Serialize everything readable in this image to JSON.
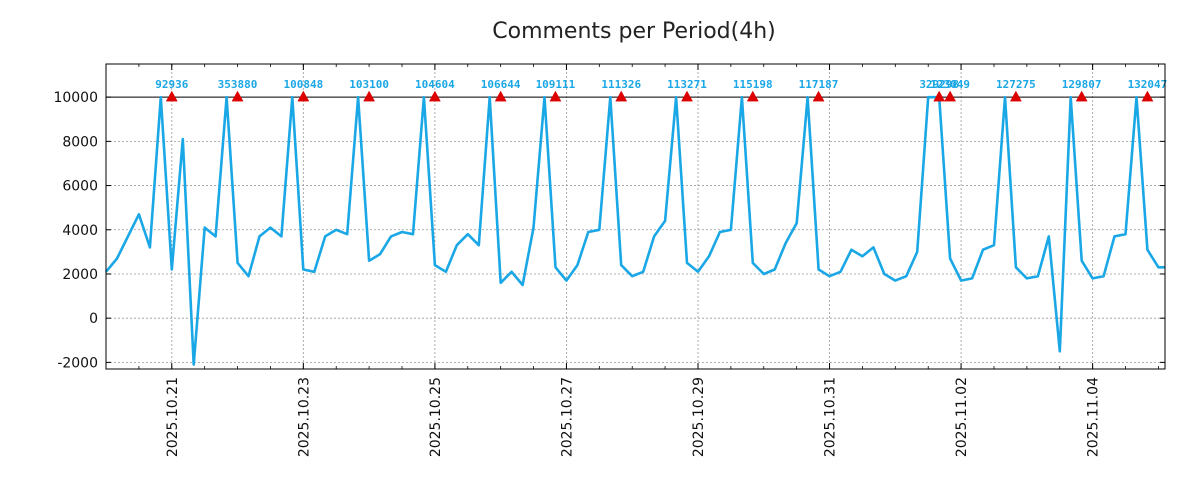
{
  "chart_data": {
    "type": "line",
    "title": "Comments per Period(4h)",
    "xlabel": "",
    "ylabel": "",
    "ylim": [
      -2300,
      11500
    ],
    "yticks": [
      -2000,
      0,
      2000,
      4000,
      6000,
      8000,
      10000
    ],
    "x_unit": "days since 2025.10.20 00:00",
    "xlim": [
      0,
      16.1
    ],
    "xticks": [
      {
        "x": 1,
        "label": "2025.10.21"
      },
      {
        "x": 3,
        "label": "2025.10.23"
      },
      {
        "x": 5,
        "label": "2025.10.25"
      },
      {
        "x": 7,
        "label": "2025.10.27"
      },
      {
        "x": 9,
        "label": "2025.10.29"
      },
      {
        "x": 11,
        "label": "2025.10.31"
      },
      {
        "x": 13,
        "label": "2025.11.02"
      },
      {
        "x": 15,
        "label": "2025.11.04"
      }
    ],
    "minor_tick_step": 0.5,
    "reference_line": 10000,
    "grid": true,
    "colors": {
      "line": "#1aa7e6",
      "marker": "#dd0000",
      "label": "#1aa7e6",
      "grid": "#999999",
      "axis": "#000000"
    },
    "series": [
      {
        "name": "comments",
        "x": [
          0,
          0.167,
          0.5,
          0.667,
          0.833,
          1.0,
          1.167,
          1.333,
          1.5,
          1.667,
          1.833,
          2.0,
          2.167,
          2.333,
          2.5,
          2.667,
          2.833,
          3.0,
          3.167,
          3.333,
          3.5,
          3.667,
          3.833,
          4.0,
          4.167,
          4.333,
          4.5,
          4.667,
          4.833,
          5.0,
          5.167,
          5.333,
          5.5,
          5.667,
          5.833,
          6.0,
          6.167,
          6.333,
          6.5,
          6.667,
          6.833,
          7.0,
          7.167,
          7.333,
          7.5,
          7.667,
          7.833,
          8.0,
          8.167,
          8.333,
          8.5,
          8.667,
          8.833,
          9.0,
          9.167,
          9.333,
          9.5,
          9.667,
          9.833,
          10.0,
          10.167,
          10.333,
          10.5,
          10.667,
          10.833,
          11.0,
          11.167,
          11.333,
          11.5,
          11.667,
          11.833,
          12.0,
          12.167,
          12.333,
          12.5,
          12.667,
          12.833,
          13.0,
          13.167,
          13.333,
          13.5,
          13.667,
          13.833,
          14.0,
          14.167,
          14.333,
          14.5,
          14.667,
          14.833,
          15.0,
          15.167,
          15.333,
          15.5,
          15.667,
          15.833,
          16.0,
          16.1
        ],
        "values": [
          2100,
          2700,
          4700,
          3200,
          10000,
          2200,
          8100,
          -2100,
          4100,
          3700,
          10000,
          2500,
          1900,
          3700,
          4100,
          3700,
          10000,
          2200,
          2100,
          3700,
          4000,
          3800,
          10000,
          2600,
          2900,
          3700,
          3900,
          3800,
          10000,
          2400,
          2100,
          3300,
          3800,
          3300,
          10000,
          1600,
          2100,
          1500,
          4100,
          10000,
          2300,
          1700,
          2400,
          3900,
          4000,
          10000,
          2400,
          1900,
          2100,
          3700,
          4400,
          10000,
          2500,
          2100,
          2800,
          3900,
          4000,
          10000,
          2500,
          2000,
          2200,
          3400,
          4300,
          10000,
          2200,
          1900,
          2100,
          3100,
          2800,
          3200,
          2000,
          1700,
          1900,
          3000,
          10000,
          10000,
          2700,
          1700,
          1800,
          3100,
          3300,
          10000,
          2300,
          1800,
          1900,
          3700,
          -1500,
          10000,
          2600,
          1800,
          1900,
          3700,
          3800,
          10000,
          3100,
          2300,
          2300
        ]
      }
    ],
    "peak_labels": [
      {
        "x": 1.0,
        "label": "92936"
      },
      {
        "x": 2.0,
        "label": "353880"
      },
      {
        "x": 3.0,
        "label": "100848"
      },
      {
        "x": 4.0,
        "label": "103100"
      },
      {
        "x": 5.0,
        "label": "104604"
      },
      {
        "x": 6.0,
        "label": "106644"
      },
      {
        "x": 6.833,
        "label": "109111"
      },
      {
        "x": 7.833,
        "label": "111326"
      },
      {
        "x": 8.833,
        "label": "113271"
      },
      {
        "x": 9.833,
        "label": "115198"
      },
      {
        "x": 10.833,
        "label": "117187"
      },
      {
        "x": 12.667,
        "label": "329298"
      },
      {
        "x": 12.833,
        "label": "123049"
      },
      {
        "x": 13.833,
        "label": "127275"
      },
      {
        "x": 14.833,
        "label": "129807"
      },
      {
        "x": 15.833,
        "label": "132047"
      }
    ]
  }
}
